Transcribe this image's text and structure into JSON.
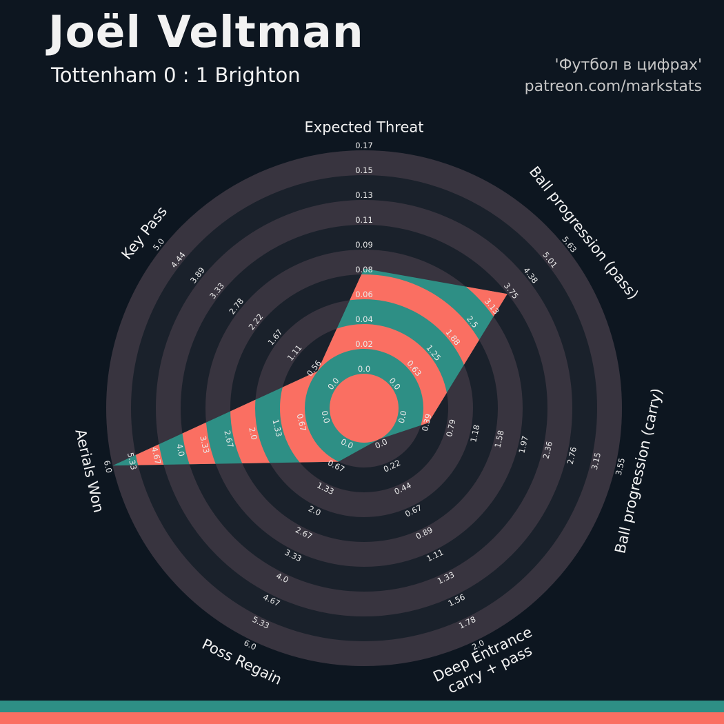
{
  "header": {
    "title": "Joël Veltman",
    "subtitle": "Tottenham 0 : 1 Brighton",
    "credit_line1": "'Футбол в цифрах'",
    "credit_line2": "patreon.com/markstats"
  },
  "colors": {
    "background": "#0d1620",
    "ring_dark": "#1a212b",
    "ring_light": "#38343f",
    "radar_teal": "#2e8f85",
    "radar_salmon": "#fa6f62",
    "text": "#f2f2f2",
    "tick_text": "#eaeaea",
    "credit_text": "#c6c6c6"
  },
  "chart_data": {
    "type": "radar",
    "title": "Joël Veltman",
    "subtitle": "Tottenham 0 : 1 Brighton",
    "rings": 9,
    "legend_position": "none",
    "grid": "concentric-circles",
    "params": [
      {
        "label": "Expected Threat",
        "value": 0.08,
        "max": 0.17,
        "ticks": [
          "0.0",
          "0.02",
          "0.04",
          "0.06",
          "0.08",
          "0.09",
          "0.11",
          "0.13",
          "0.15",
          "0.17"
        ]
      },
      {
        "label": "Ball progression (pass)",
        "value": 3.75,
        "max": 5.63,
        "ticks": [
          "0.0",
          "0.63",
          "1.25",
          "1.88",
          "2.5",
          "3.13",
          "3.75",
          "4.38",
          "5.01",
          "5.63"
        ]
      },
      {
        "label": "Ball progression (carry)",
        "value": 0.5,
        "max": 3.55,
        "ticks": [
          "0.0",
          "0.39",
          "0.79",
          "1.18",
          "1.58",
          "1.97",
          "2.36",
          "2.76",
          "3.15",
          "3.55"
        ]
      },
      {
        "label": "Deep Entrance\ncarry + pass",
        "value": 0.0,
        "max": 2.0,
        "ticks": [
          "0.0",
          "0.22",
          "0.44",
          "0.67",
          "0.89",
          "1.11",
          "1.33",
          "1.56",
          "1.78",
          "2.0"
        ]
      },
      {
        "label": "Poss Regain",
        "value": 0.67,
        "max": 6.0,
        "ticks": [
          "0.0",
          "0.67",
          "1.33",
          "2.0",
          "2.67",
          "3.33",
          "4.0",
          "4.67",
          "5.33",
          "6.0"
        ]
      },
      {
        "label": "Aerials Won",
        "value": 6.0,
        "max": 6.0,
        "ticks": [
          "0.0",
          "0.67",
          "1.33",
          "2.0",
          "2.67",
          "3.33",
          "4.0",
          "4.67",
          "5.33",
          "6.0"
        ]
      },
      {
        "label": "Key Pass",
        "value": 0.56,
        "max": 5.0,
        "ticks": [
          "0.0",
          "0.56",
          "1.11",
          "1.67",
          "2.22",
          "2.78",
          "3.33",
          "3.89",
          "4.44",
          "5.0"
        ]
      }
    ]
  },
  "footer": {
    "bar_colors": [
      "#2e8f85",
      "#fa6f62"
    ]
  }
}
